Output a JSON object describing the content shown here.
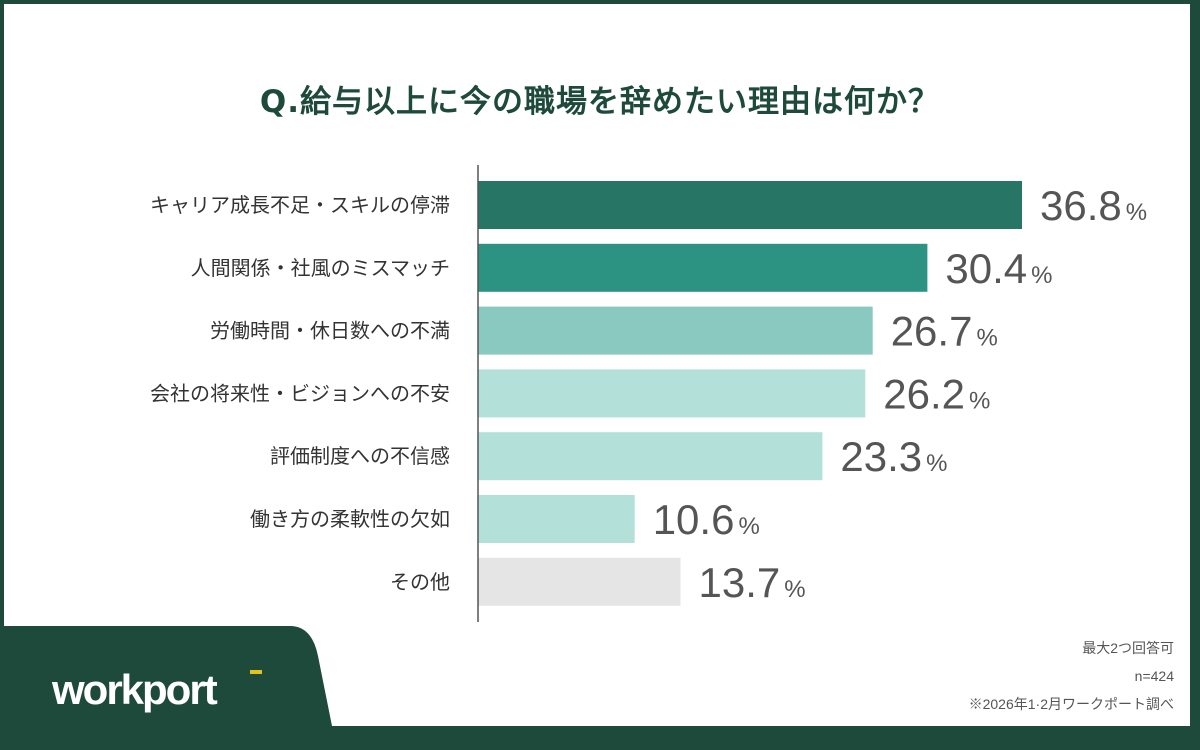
{
  "brand": {
    "logo_text": "workport",
    "frame_color": "#1e4a3c",
    "accent_color": "#e8c21a"
  },
  "chart_data": {
    "type": "bar",
    "orientation": "horizontal",
    "title": "Q.給与以上に今の職場を辞めたい理由は何か？",
    "categories": [
      "キャリア成長不足・スキルの停滞",
      "人間関係・社風のミスマッチ",
      "労働時間・休日数への不満",
      "会社の将来性・ビジョンへの不安",
      "評価制度への不信感",
      "働き方の柔軟性の欠如",
      "その他"
    ],
    "values": [
      36.8,
      30.4,
      26.7,
      26.2,
      23.3,
      10.6,
      13.7
    ],
    "value_labels": [
      "36.8",
      "30.4",
      "26.7",
      "26.2",
      "23.3",
      "10.6",
      "13.7"
    ],
    "unit": "%",
    "colors": [
      "#277565",
      "#2c9383",
      "#89c9c0",
      "#b4e0da",
      "#b4e0da",
      "#b4e0da",
      "#e5e5e5"
    ],
    "xlim": [
      0,
      36.8
    ],
    "grid": false
  },
  "notes": [
    "最大2つ回答可",
    "n=424",
    "※2026年1·2月ワークポート調べ"
  ]
}
